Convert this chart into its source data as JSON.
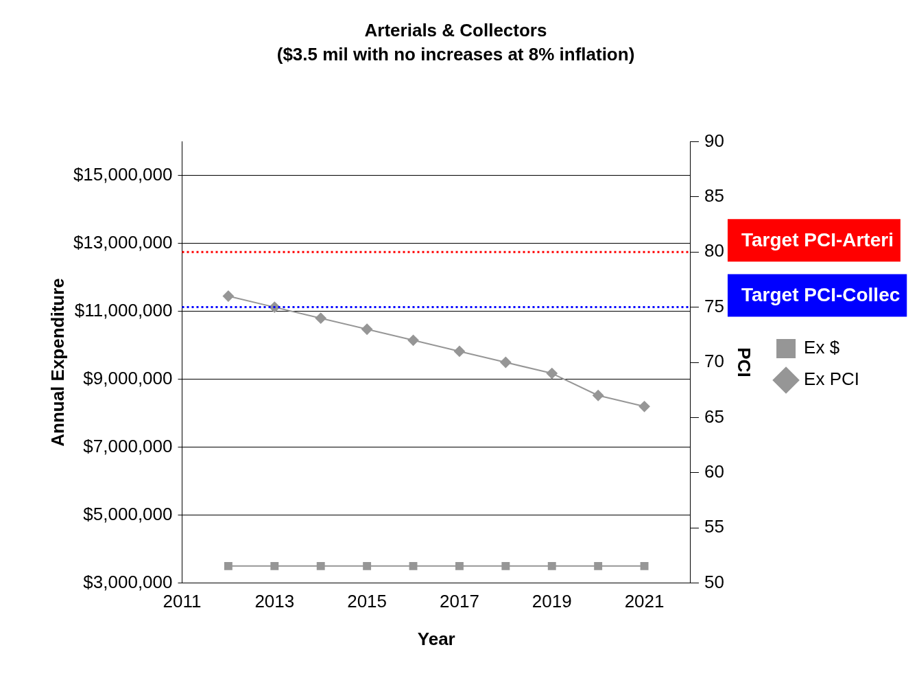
{
  "chart_data": {
    "type": "line",
    "title": "Arterials & Collectors",
    "subtitle": "($3.5 mil with no increases at 8% inflation)",
    "xlabel": "Year",
    "ylabel": "Annual Expenditure",
    "y2label": "PCI",
    "x": [
      2012,
      2013,
      2014,
      2015,
      2016,
      2017,
      2018,
      2019,
      2020,
      2021
    ],
    "xlim": [
      2011,
      2022
    ],
    "xticks": [
      2011,
      2013,
      2015,
      2017,
      2019,
      2021
    ],
    "ylim": [
      3000000,
      16000000
    ],
    "yticks": [
      {
        "value": 3000000,
        "label": "$3,000,000"
      },
      {
        "value": 5000000,
        "label": "$5,000,000"
      },
      {
        "value": 7000000,
        "label": "$7,000,000"
      },
      {
        "value": 9000000,
        "label": "$9,000,000"
      },
      {
        "value": 11000000,
        "label": "$11,000,000"
      },
      {
        "value": 13000000,
        "label": "$13,000,000"
      },
      {
        "value": 15000000,
        "label": "$15,000,000"
      }
    ],
    "y2lim": [
      50,
      90
    ],
    "y2ticks": [
      50,
      55,
      60,
      65,
      70,
      75,
      80,
      85,
      90
    ],
    "series": [
      {
        "name": "Ex $",
        "color": "#969696",
        "marker": "square",
        "values": [
          3500000,
          3500000,
          3500000,
          3500000,
          3500000,
          3500000,
          3500000,
          3500000,
          3500000,
          3500000
        ]
      },
      {
        "name": "Ex PCI",
        "color": "#969696",
        "marker": "diamond",
        "axis": "y2",
        "values": [
          76,
          75,
          74,
          73,
          72,
          71,
          70,
          69,
          67,
          66
        ]
      }
    ],
    "ref_lines": [
      {
        "axis": "y2",
        "value": 80,
        "label": "Target PCI-Arteri",
        "color": "#ff0000",
        "line_style": "dotted"
      },
      {
        "axis": "y2",
        "value": 75,
        "label": "Target PCI-Collec",
        "color": "#0000ff",
        "line_style": "dotted"
      }
    ],
    "grid": "y",
    "legend": "right"
  }
}
